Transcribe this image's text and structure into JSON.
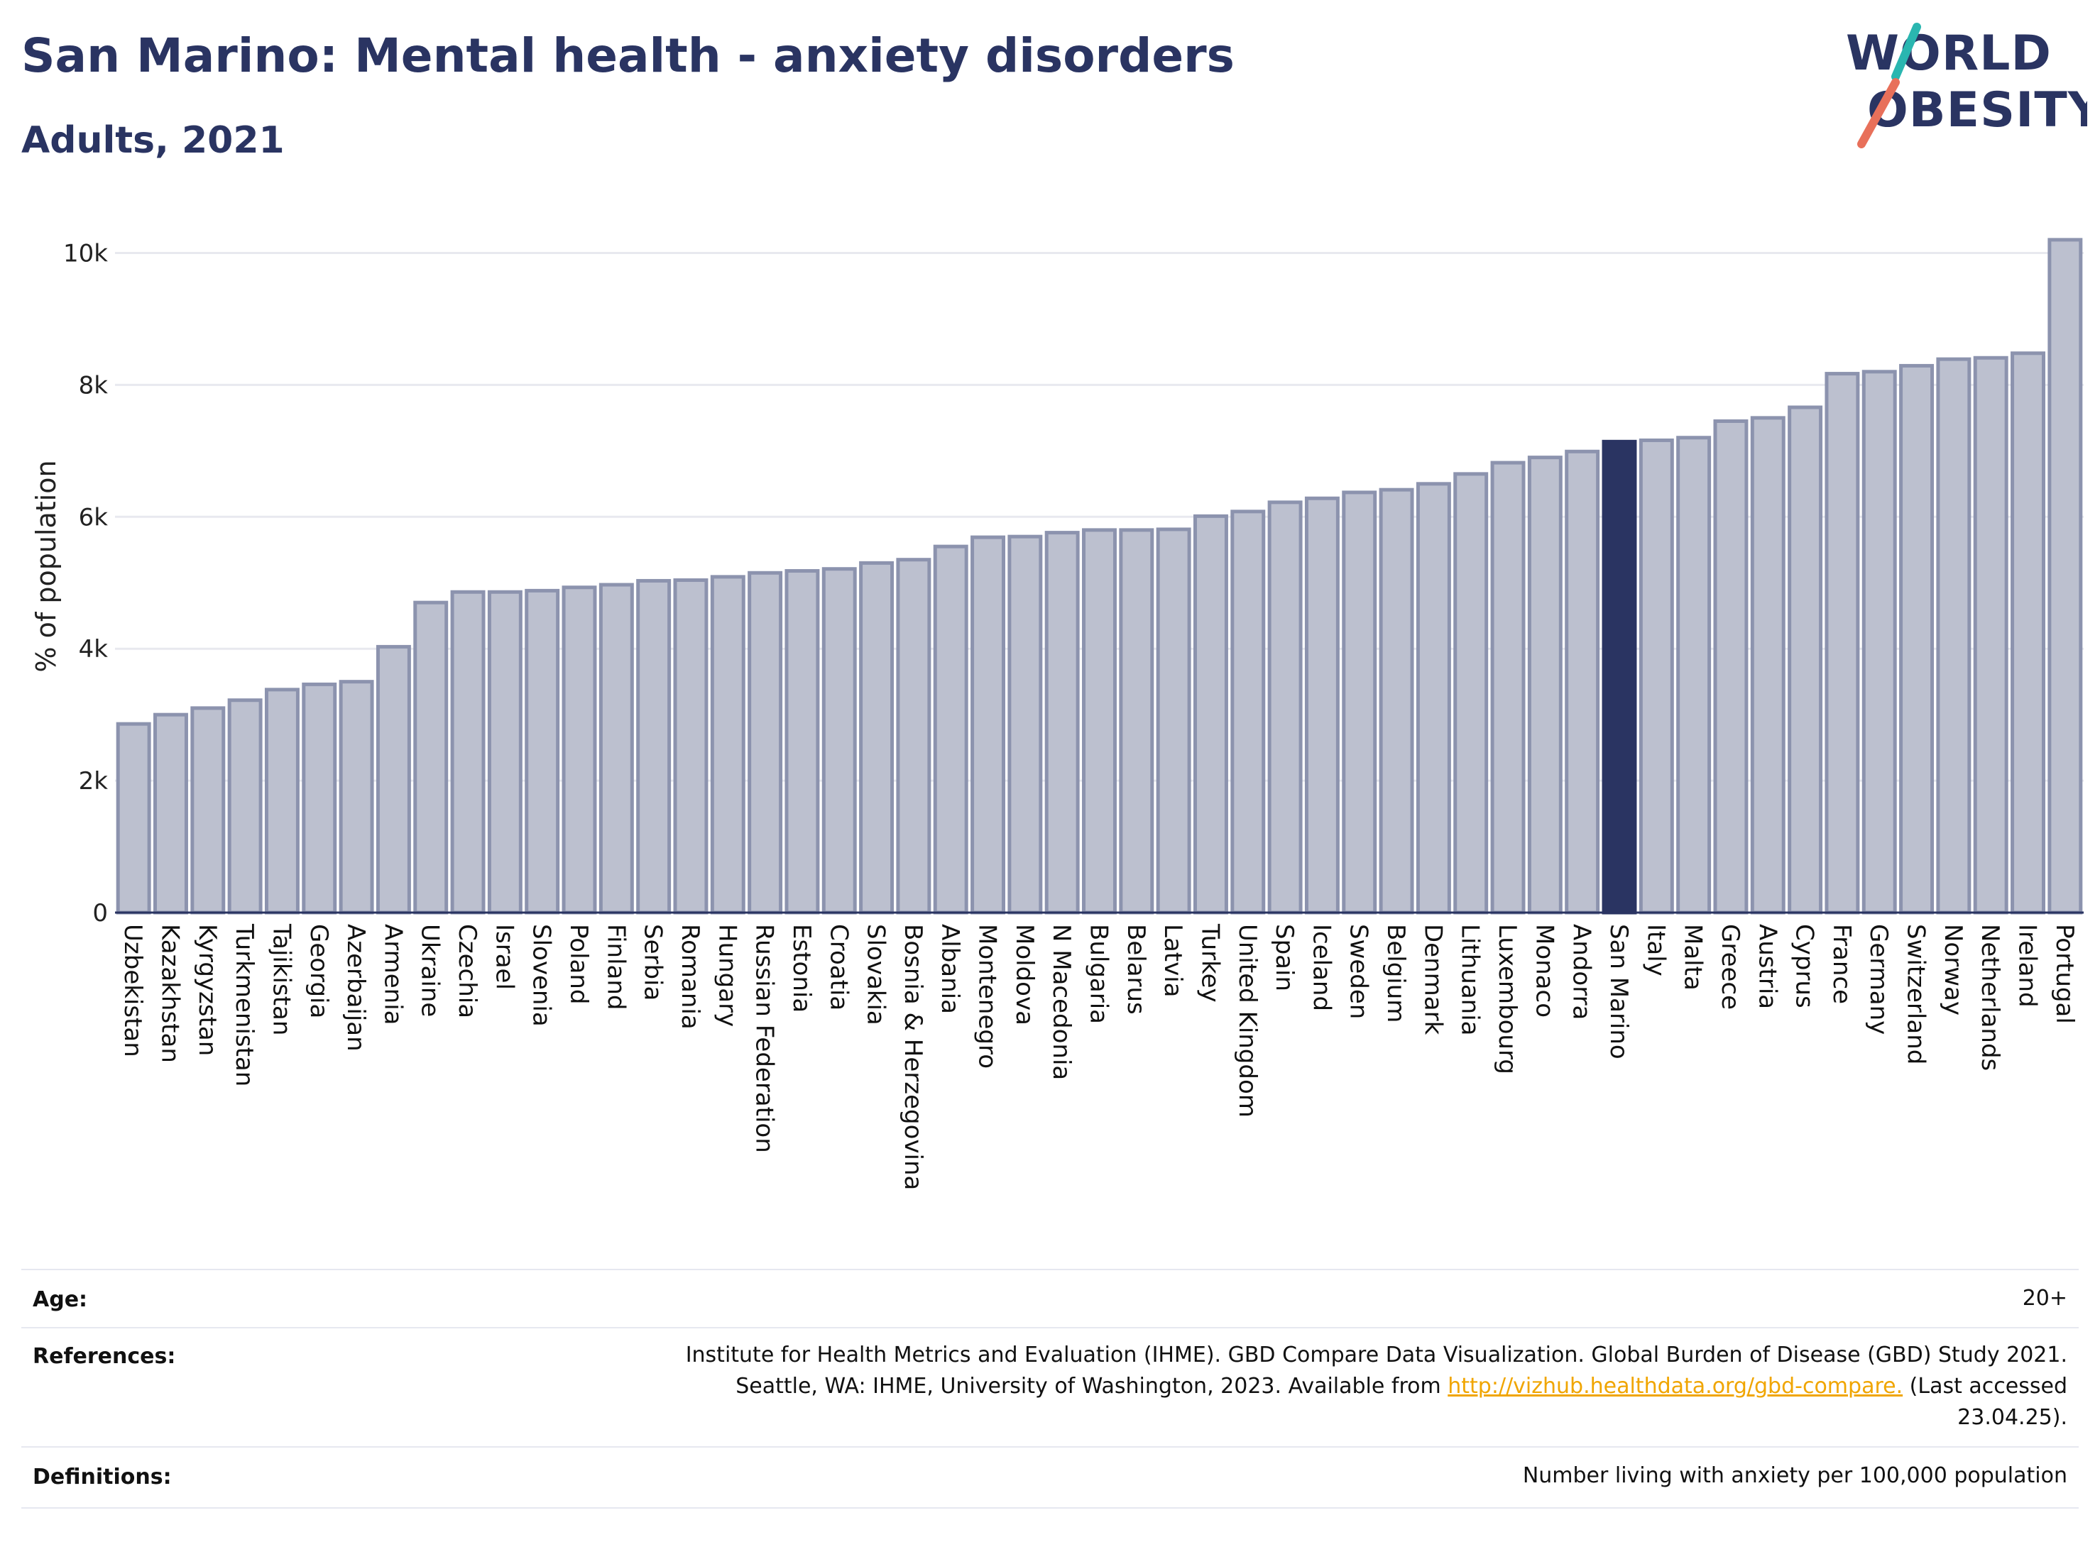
{
  "header": {
    "title": "San Marino: Mental health - anxiety disorders",
    "subtitle": "Adults, 2021"
  },
  "logo": {
    "line1": "WORLD",
    "line2": "OBESITY"
  },
  "colors": {
    "title": "#2a3462",
    "bar_default": "#bcc0cf",
    "bar_default_stroke": "#8c93ae",
    "bar_highlight": "#2a3462",
    "grid": "#e8e9ef",
    "link": "#f0a500",
    "logo_teal": "#2ab6b0",
    "logo_coral": "#e8705a"
  },
  "chart_data": {
    "type": "bar",
    "ylabel": "% of population",
    "xlabel": "",
    "ylim": [
      0,
      10500
    ],
    "yticks": [
      0,
      2000,
      4000,
      6000,
      8000,
      10000
    ],
    "ytick_labels": [
      "0",
      "2k",
      "4k",
      "6k",
      "8k",
      "10k"
    ],
    "grid": true,
    "highlight": "San Marino",
    "categories": [
      "Uzbekistan",
      "Kazakhstan",
      "Kyrgyzstan",
      "Turkmenistan",
      "Tajikistan",
      "Georgia",
      "Azerbaijan",
      "Armenia",
      "Ukraine",
      "Czechia",
      "Israel",
      "Slovenia",
      "Poland",
      "Finland",
      "Serbia",
      "Romania",
      "Hungary",
      "Russian Federation",
      "Estonia",
      "Croatia",
      "Slovakia",
      "Bosnia & Herzegovina",
      "Albania",
      "Montenegro",
      "Moldova",
      "N Macedonia",
      "Bulgaria",
      "Belarus",
      "Latvia",
      "Turkey",
      "United Kingdom",
      "Spain",
      "Iceland",
      "Sweden",
      "Belgium",
      "Denmark",
      "Lithuania",
      "Luxembourg",
      "Monaco",
      "Andorra",
      "San Marino",
      "Italy",
      "Malta",
      "Greece",
      "Austria",
      "Cyprus",
      "France",
      "Germany",
      "Switzerland",
      "Norway",
      "Netherlands",
      "Ireland",
      "Portugal"
    ],
    "values": [
      2860,
      3000,
      3100,
      3220,
      3380,
      3460,
      3500,
      4030,
      4700,
      4860,
      4860,
      4880,
      4930,
      4970,
      5030,
      5040,
      5090,
      5150,
      5180,
      5210,
      5300,
      5350,
      5550,
      5690,
      5700,
      5760,
      5800,
      5800,
      5810,
      6010,
      6080,
      6220,
      6280,
      6370,
      6410,
      6500,
      6650,
      6820,
      6900,
      6990,
      7140,
      7160,
      7200,
      7450,
      7500,
      7660,
      8170,
      8200,
      8290,
      8390,
      8410,
      8480,
      10200
    ]
  },
  "info": {
    "age_label": "Age:",
    "age_value": "20+",
    "references_label": "References:",
    "references_line1": "Institute for Health Metrics and Evaluation (IHME). GBD Compare Data Visualization. Global Burden of Disease (GBD) Study 2021.",
    "references_line2_pre": "Seattle, WA: IHME, University of Washington, 2023. Available from",
    "references_link": "http://vizhub.healthdata.org/gbd-compare.",
    "references_line2_post": "(Last accessed",
    "references_line3": "23.04.25).",
    "definitions_label": "Definitions:",
    "definitions_value": "Number living with anxiety per 100,000 population"
  }
}
